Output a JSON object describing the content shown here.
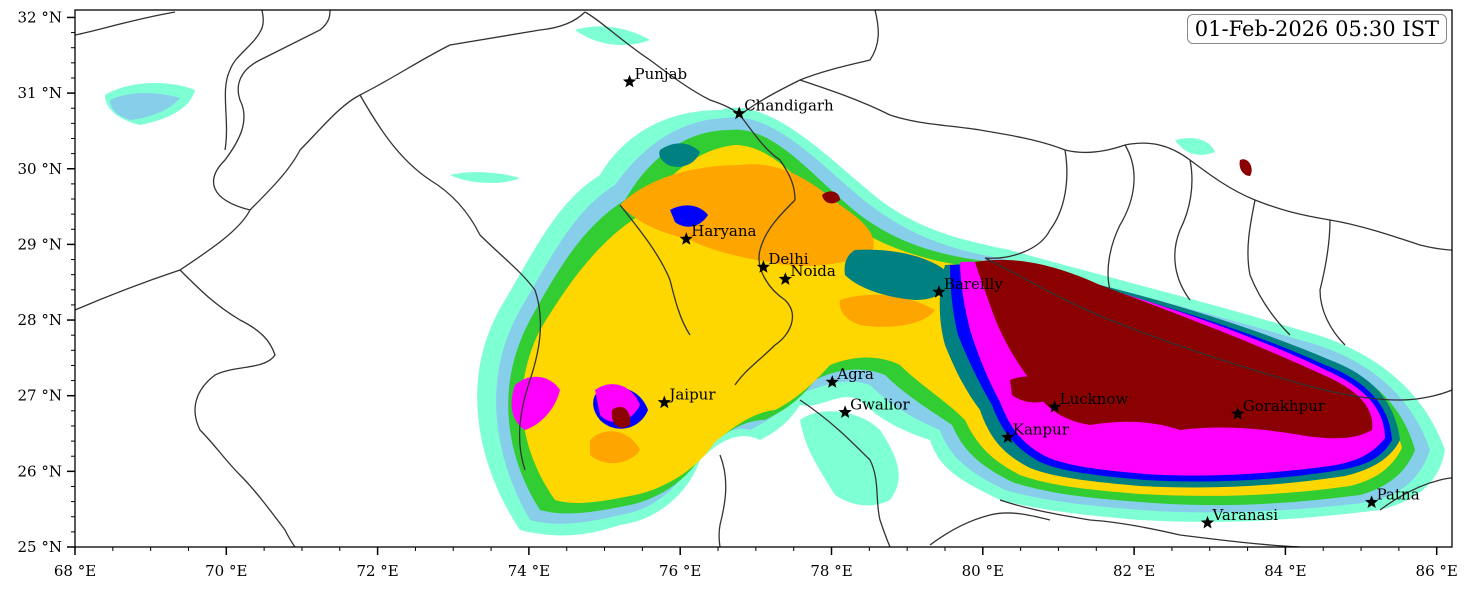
{
  "timestamp": "01-Feb-2026 05:30 IST",
  "axes": {
    "x_ticks": [
      "68 °E",
      "70 °E",
      "72 °E",
      "74 °E",
      "76 °E",
      "78 °E",
      "80 °E",
      "82 °E",
      "84 °E",
      "86 °E"
    ],
    "y_ticks": [
      "32 °N",
      "31 °N",
      "30 °N",
      "29 °N",
      "28 °N",
      "27 °N",
      "26 °N",
      "25 °N"
    ],
    "lon_range": [
      68,
      86.2
    ],
    "lat_range": [
      25,
      32.1
    ]
  },
  "cities": [
    {
      "name": "Punjab",
      "lon": 75.33,
      "lat": 31.15
    },
    {
      "name": "Chandigarh",
      "lon": 76.78,
      "lat": 30.73
    },
    {
      "name": "Haryana",
      "lon": 76.08,
      "lat": 29.07
    },
    {
      "name": "Delhi",
      "lon": 77.1,
      "lat": 28.7
    },
    {
      "name": "Noida",
      "lon": 77.39,
      "lat": 28.54
    },
    {
      "name": "Bareilly",
      "lon": 79.42,
      "lat": 28.37
    },
    {
      "name": "Agra",
      "lon": 78.01,
      "lat": 27.18
    },
    {
      "name": "Jaipur",
      "lon": 75.79,
      "lat": 26.91
    },
    {
      "name": "Gwalior",
      "lon": 78.18,
      "lat": 26.78
    },
    {
      "name": "Lucknow",
      "lon": 80.95,
      "lat": 26.85
    },
    {
      "name": "Kanpur",
      "lon": 80.33,
      "lat": 26.45
    },
    {
      "name": "Gorakhpur",
      "lon": 83.37,
      "lat": 26.76
    },
    {
      "name": "Varanasi",
      "lon": 82.97,
      "lat": 25.32
    },
    {
      "name": "Patna",
      "lon": 85.14,
      "lat": 25.59
    }
  ],
  "colors": {
    "level1": "#7fffd4",
    "level2": "#87ceeb",
    "level3": "#32cd32",
    "level4": "#ffd700",
    "level5": "#ffa500",
    "level6": "#008080",
    "level7": "#0000ff",
    "level8": "#ff00ff",
    "level9": "#8b0000"
  }
}
